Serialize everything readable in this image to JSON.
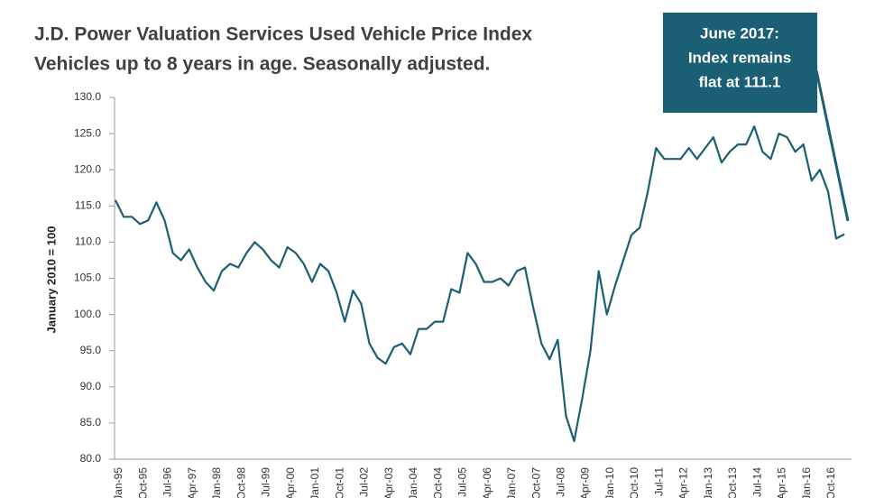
{
  "chart_data": {
    "type": "line",
    "title": "J.D. Power Valuation Services Used Vehicle Price Index",
    "subtitle": "Vehicles up to 8 years in age. Seasonally adjusted.",
    "y_label": "January 2010 = 100",
    "annotation": [
      "June 2017:",
      "Index remains",
      "flat at 111.1"
    ],
    "categories": [
      "Jan-95",
      null,
      null,
      "Oct-95",
      null,
      null,
      "Jul-96",
      null,
      null,
      "Apr-97",
      null,
      null,
      "Jan-98",
      null,
      null,
      "Oct-98",
      null,
      null,
      "Jul-99",
      null,
      null,
      "Apr-00",
      null,
      null,
      "Jan-01",
      null,
      null,
      "Oct-01",
      null,
      null,
      "Jul-02",
      null,
      null,
      "Apr-03",
      null,
      null,
      "Jan-04",
      null,
      null,
      "Oct-04",
      null,
      null,
      "Jul-05",
      null,
      null,
      "Apr-06",
      null,
      null,
      "Jan-07",
      null,
      null,
      "Oct-07",
      null,
      null,
      "Jul-08",
      null,
      null,
      "Apr-09",
      null,
      null,
      "Jan-10",
      null,
      null,
      "Oct-10",
      null,
      null,
      "Jul-11",
      null,
      null,
      "Apr-12",
      null,
      null,
      "Jan-13",
      null,
      null,
      "Oct-13",
      null,
      null,
      "Jul-14",
      null,
      null,
      "Apr-15",
      null,
      null,
      "Jan-16",
      null,
      null,
      "Oct-16",
      null,
      null
    ],
    "values": [
      115.8,
      113.5,
      113.5,
      112.5,
      113,
      115.5,
      113,
      108.5,
      107.5,
      109,
      106.5,
      104.5,
      103.3,
      106,
      107,
      106.5,
      108.5,
      110,
      109,
      107.5,
      106.5,
      109.3,
      108.5,
      107,
      104.5,
      107,
      106,
      103,
      99,
      103.3,
      101.5,
      96,
      94,
      93.2,
      95.5,
      96,
      94.5,
      98,
      98,
      99,
      99,
      103.5,
      103,
      108.5,
      107,
      104.5,
      104.5,
      105,
      104,
      106,
      106.5,
      101,
      96,
      93.8,
      96.5,
      86,
      82.5,
      88.5,
      95,
      106,
      100,
      104,
      107.5,
      111,
      112,
      117,
      123,
      121.5,
      121.5,
      121.5,
      123,
      121.5,
      123,
      124.5,
      121,
      122.5,
      123.5,
      123.5,
      126,
      122.5,
      121.5,
      125,
      124.5,
      122.5,
      123.5,
      118.5,
      120,
      117,
      110.5,
      111.1
    ],
    "color": "#1a5f73",
    "ylim": [
      80,
      130
    ],
    "yticks": [
      {
        "value": 80,
        "label": "80.0"
      },
      {
        "value": 85,
        "label": "85.0"
      },
      {
        "value": 90,
        "label": "90.0"
      },
      {
        "value": 95,
        "label": "95.0"
      },
      {
        "value": 100,
        "label": "100.0"
      },
      {
        "value": 105,
        "label": "105.0"
      },
      {
        "value": 110,
        "label": "110.0"
      },
      {
        "value": 115,
        "label": "115.0"
      },
      {
        "value": 120,
        "label": "120.0"
      },
      {
        "value": 125,
        "label": "125.0"
      },
      {
        "value": 130,
        "label": "130.0"
      }
    ],
    "grid": false
  }
}
